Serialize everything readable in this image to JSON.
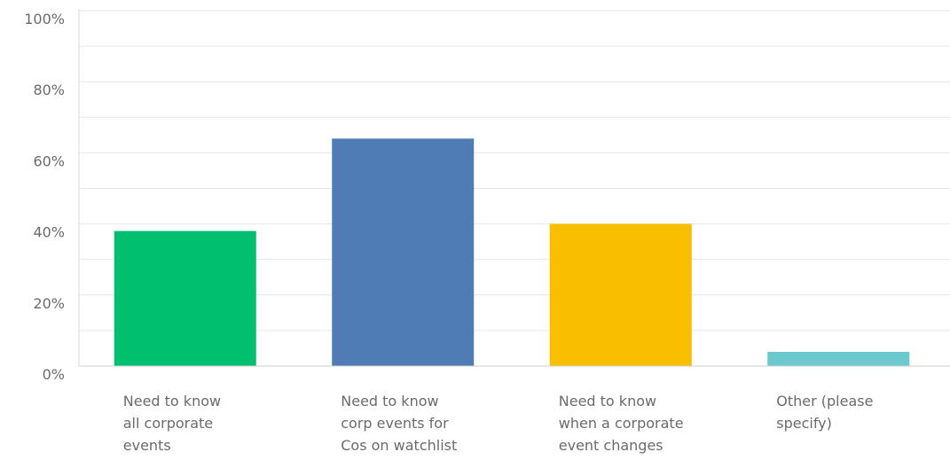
{
  "chart_data": {
    "type": "bar",
    "categories": [
      [
        "Need to know",
        "all corporate",
        "events"
      ],
      [
        "Need to know",
        "corp events for",
        "Cos on watchlist"
      ],
      [
        "Need to know",
        "when a corporate",
        "event changes"
      ],
      [
        "Other (please",
        "specify)"
      ]
    ],
    "values": [
      38,
      64,
      40,
      4
    ],
    "colors": [
      "#00bf6f",
      "#507cb6",
      "#f9be00",
      "#6bc8cd"
    ],
    "ylim": [
      0,
      100
    ],
    "yticks": [
      "0%",
      "20%",
      "40%",
      "60%",
      "80%",
      "100%"
    ],
    "ytick_values": [
      0,
      20,
      40,
      60,
      80,
      100
    ],
    "grid": true
  }
}
